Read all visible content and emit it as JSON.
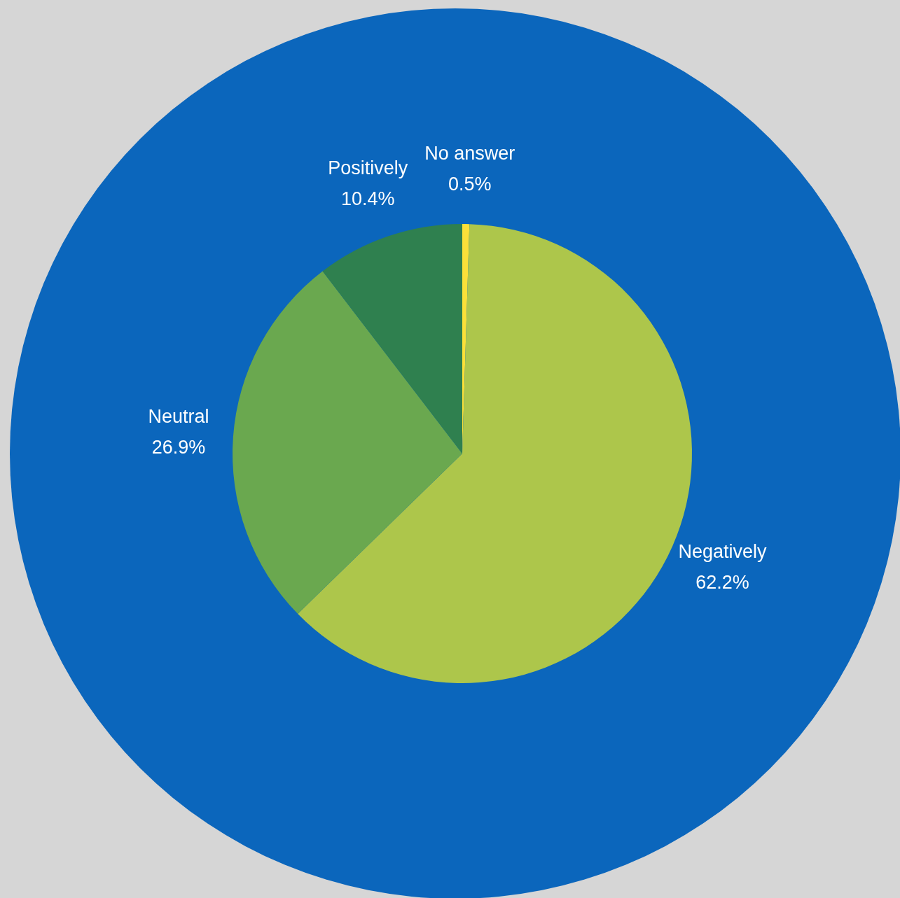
{
  "chart_data": {
    "type": "pie",
    "categories": [
      "No answer",
      "Negatively",
      "Neutral",
      "Positively"
    ],
    "values": [
      0.5,
      62.2,
      26.9,
      10.4
    ],
    "value_labels": [
      "0.5%",
      "62.2%",
      "26.9%",
      "10.4%"
    ],
    "colors": [
      "#fbe039",
      "#adc64b",
      "#6aa84f",
      "#2f804f"
    ],
    "color": "#0b66bc",
    "data_labels": true
  }
}
